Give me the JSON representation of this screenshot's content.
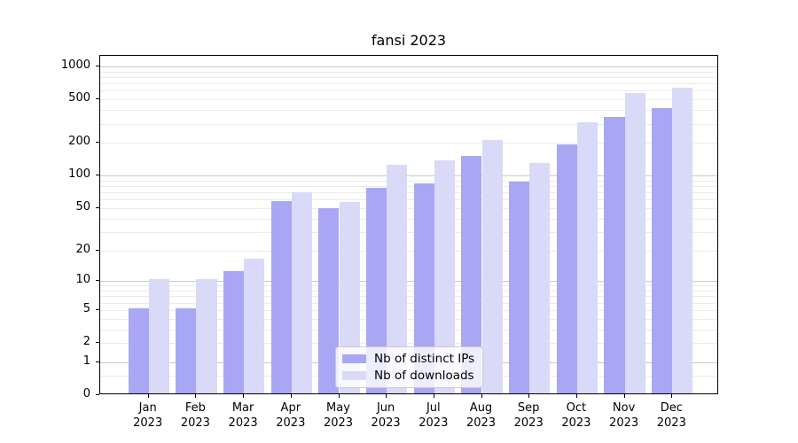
{
  "title": "fansi 2023",
  "colors": {
    "bar_distinct_ips": "#a7a7f3",
    "bar_downloads": "#d9d9f8",
    "grid_major": "#c9c9c9",
    "grid_minor": "#ebebeb",
    "axis": "#000000",
    "background": "#ffffff"
  },
  "legend": {
    "items": [
      {
        "label": "Nb of distinct IPs",
        "color": "#a7a7f3"
      },
      {
        "label": "Nb of downloads",
        "color": "#d9d9f8"
      }
    ]
  },
  "chart_data": {
    "type": "bar",
    "title": "fansi 2023",
    "xlabel": "",
    "ylabel": "",
    "categories": [
      "Jan 2023",
      "Feb 2023",
      "Mar 2023",
      "Apr 2023",
      "May 2023",
      "Jun 2023",
      "Jul 2023",
      "Aug 2023",
      "Sep 2023",
      "Oct 2023",
      "Nov 2023",
      "Dec 2023"
    ],
    "series": [
      {
        "name": "Nb of distinct IPs",
        "color": "#a7a7f3",
        "values": [
          5,
          5,
          12,
          56,
          48,
          74,
          82,
          147,
          85,
          185,
          330,
          400
        ]
      },
      {
        "name": "Nb of downloads",
        "color": "#d9d9f8",
        "values": [
          10,
          10,
          16,
          67,
          55,
          122,
          134,
          205,
          126,
          300,
          550,
          615
        ]
      }
    ],
    "yscale": "log1p",
    "ylim": [
      0,
      1250
    ],
    "yticks": [
      0,
      1,
      2,
      5,
      10,
      20,
      50,
      100,
      200,
      500,
      1000
    ],
    "yticks_minor": [
      0.5,
      2,
      3,
      4,
      5,
      6,
      7,
      8,
      9,
      20,
      30,
      40,
      50,
      60,
      70,
      80,
      90,
      200,
      300,
      400,
      500,
      600,
      700,
      800,
      900
    ],
    "grid": "horizontal only, major at powers of 10, light minor lines",
    "legend_position": "lower center"
  }
}
